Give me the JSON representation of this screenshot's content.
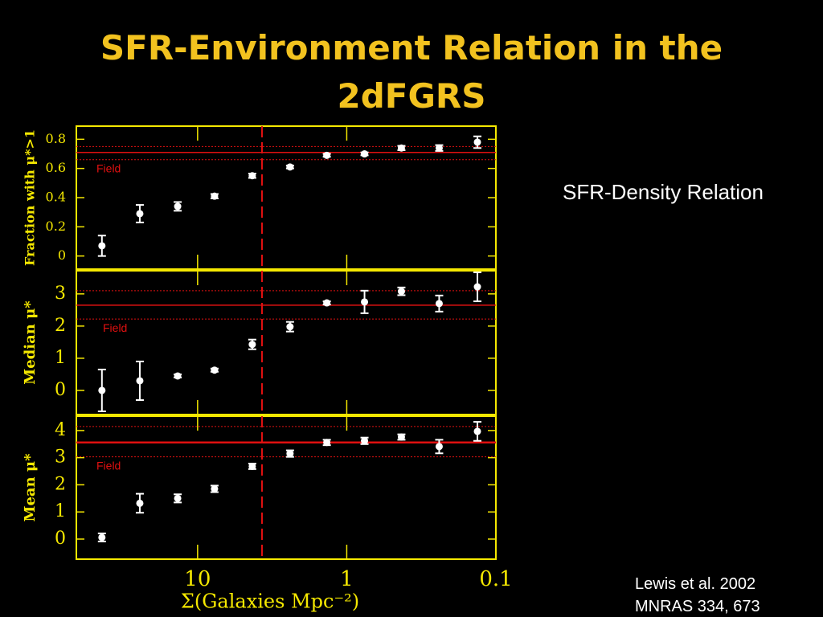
{
  "title": "SFR-Environment Relation in the 2dFGRS",
  "side_label": "SFR-Density Relation",
  "citation": [
    "Lewis et al. 2002",
    "MNRAS 334, 673"
  ],
  "chart_data": [
    {
      "type": "scatter",
      "y_label": "Fraction with μ*>1",
      "log_x": true,
      "x": [
        43.8,
        24.4,
        13.6,
        7.7,
        4.3,
        2.4,
        1.36,
        0.76,
        0.43,
        0.24,
        0.133
      ],
      "values": [
        0.07,
        0.29,
        0.34,
        0.41,
        0.55,
        0.61,
        0.69,
        0.7,
        0.74,
        0.74,
        0.78
      ],
      "errors": [
        0.07,
        0.06,
        0.03,
        0.015,
        0.015,
        0.01,
        0.01,
        0.01,
        0.015,
        0.02,
        0.04
      ],
      "xlim": [
        65,
        0.1
      ],
      "xticks": [
        10,
        1,
        0.1
      ],
      "ylim": [
        -0.09,
        0.89
      ],
      "yticks": [
        0,
        0.2,
        0.4,
        0.6,
        0.8
      ],
      "reference": {
        "value": 0.71,
        "band": [
          0.66,
          0.75
        ],
        "label": "Field",
        "color": "#e01010"
      },
      "x_marker": 3.7,
      "color": "#ffffff"
    },
    {
      "type": "scatter",
      "y_label": "Median μ*",
      "log_x": true,
      "x": [
        43.8,
        24.4,
        13.6,
        7.7,
        4.3,
        2.4,
        1.36,
        0.76,
        0.43,
        0.24,
        0.133
      ],
      "values": [
        0,
        0.3,
        0.45,
        0.63,
        1.43,
        1.98,
        2.72,
        2.75,
        3.08,
        2.7,
        3.22
      ],
      "errors": [
        0.65,
        0.6,
        0.05,
        0.05,
        0.15,
        0.15,
        0.05,
        0.35,
        0.12,
        0.25,
        0.45
      ],
      "xlim": [
        65,
        0.1
      ],
      "xticks": [
        10,
        1,
        0.1
      ],
      "ylim": [
        -0.75,
        3.72
      ],
      "yticks": [
        0,
        1,
        2,
        3
      ],
      "reference": {
        "value": 2.65,
        "band": [
          2.22,
          3.1
        ],
        "label": "Field",
        "color": "#e01010"
      },
      "x_marker": 3.7,
      "color": "#ffffff"
    },
    {
      "type": "scatter",
      "y_label": "Mean μ*",
      "x_label": "Σ(Galaxies Mpc⁻²)",
      "log_x": true,
      "x": [
        43.8,
        24.4,
        13.6,
        7.7,
        4.3,
        2.4,
        1.36,
        0.76,
        0.43,
        0.24,
        0.133
      ],
      "values": [
        0.06,
        1.32,
        1.5,
        1.85,
        2.68,
        3.15,
        3.56,
        3.62,
        3.76,
        3.41,
        3.97
      ],
      "errors": [
        0.15,
        0.35,
        0.15,
        0.12,
        0.1,
        0.12,
        0.1,
        0.12,
        0.1,
        0.25,
        0.35
      ],
      "xlim": [
        65,
        0.1
      ],
      "xticks": [
        10,
        1,
        0.1
      ],
      "ylim": [
        -0.74,
        4.53
      ],
      "yticks": [
        0,
        1,
        2,
        3,
        4
      ],
      "reference": {
        "value": 3.56,
        "band": [
          3.03,
          4.15
        ],
        "label": "Field",
        "color": "#e01010"
      },
      "x_marker": 3.7,
      "color": "#ffffff"
    }
  ]
}
